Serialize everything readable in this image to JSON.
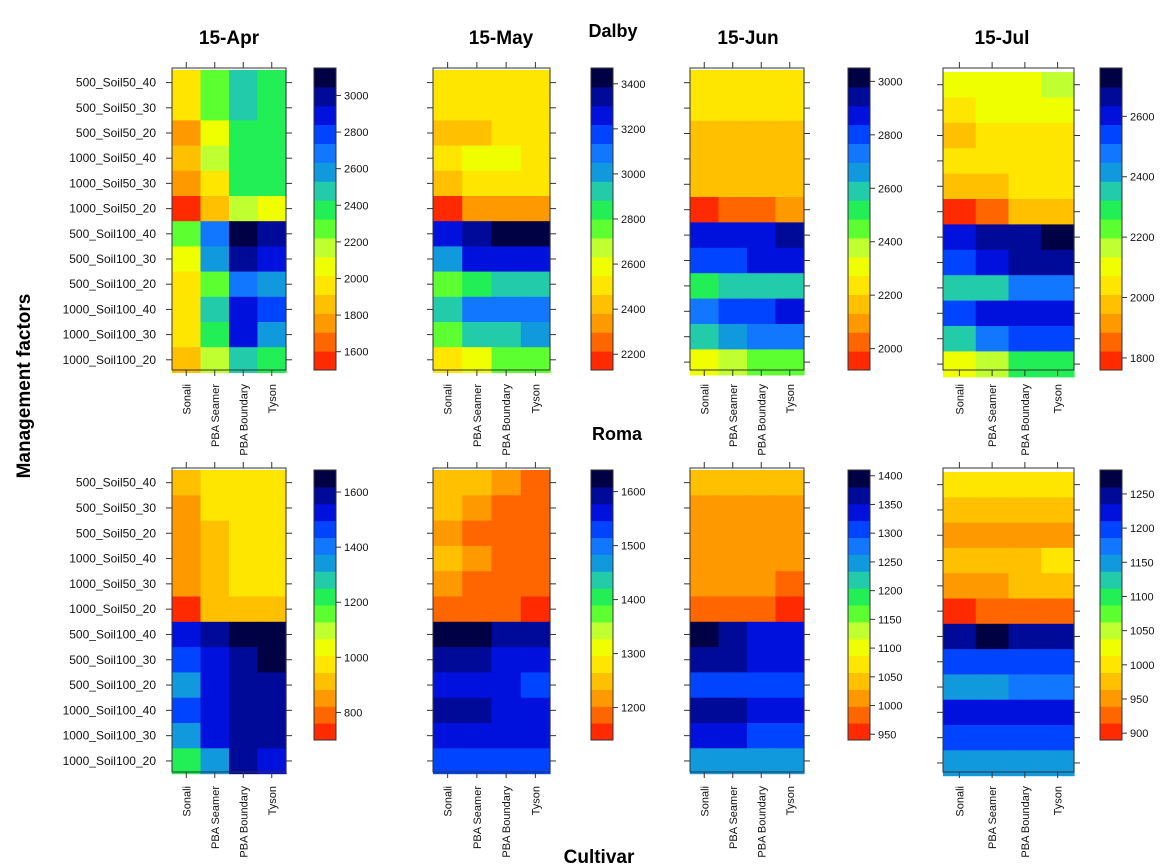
{
  "axes": {
    "ylabel": "Management factors",
    "xlabel": "Cultivar"
  },
  "colors": {
    "scale": [
      "#ff2a00",
      "#ff6600",
      "#ff9900",
      "#ffc000",
      "#ffe600",
      "#f0ff00",
      "#c0ff30",
      "#5cff30",
      "#22ee55",
      "#22ccaa",
      "#1199dd",
      "#1177ff",
      "#0044ff",
      "#0010dd",
      "#000a99",
      "#000044"
    ]
  },
  "chart_data": {
    "type": "heatmap",
    "rows": [
      "500_Soil50_40",
      "500_Soil50_30",
      "500_Soil50_20",
      "1000_Soil50_40",
      "1000_Soil50_30",
      "1000_Soil50_20",
      "500_Soil100_40",
      "500_Soil100_30",
      "500_Soil100_20",
      "1000_Soil100_40",
      "1000_Soil100_30",
      "1000_Soil100_20"
    ],
    "columns": [
      "Sonali",
      "PBA Seamer",
      "PBA Boundary",
      "Tyson"
    ],
    "sites": [
      {
        "name": "Dalby",
        "panels": [
          {
            "month": "15-Apr",
            "min": 1500,
            "max": 3150,
            "ticks": [
              1600,
              1800,
              2000,
              2200,
              2400,
              2600,
              2800,
              3000
            ],
            "values": [
              [
                1950,
                2300,
                2500,
                2350
              ],
              [
                1950,
                2300,
                2500,
                2350
              ],
              [
                1800,
                2050,
                2400,
                2350
              ],
              [
                1900,
                2150,
                2400,
                2350
              ],
              [
                1800,
                2000,
                2400,
                2350
              ],
              [
                1550,
                1900,
                2200,
                2050
              ],
              [
                2300,
                2700,
                3100,
                2950
              ],
              [
                2100,
                2550,
                2950,
                2850
              ],
              [
                1950,
                2300,
                2650,
                2550
              ],
              [
                1950,
                2450,
                2900,
                2750
              ],
              [
                2000,
                2350,
                2850,
                2600
              ],
              [
                1850,
                2150,
                2500,
                2400
              ]
            ]
          },
          {
            "month": "15-May",
            "min": 2130,
            "max": 3470,
            "ticks": [
              2200,
              2400,
              2600,
              2800,
              3000,
              3200,
              3400
            ],
            "values": [
              [
                2500,
                2500,
                2500,
                2500
              ],
              [
                2500,
                2500,
                2500,
                2500
              ],
              [
                2450,
                2450,
                2500,
                2500
              ],
              [
                2500,
                2550,
                2550,
                2500
              ],
              [
                2450,
                2500,
                2500,
                2500
              ],
              [
                2180,
                2300,
                2380,
                2380
              ],
              [
                3230,
                3330,
                3430,
                3430
              ],
              [
                3030,
                3230,
                3230,
                3230
              ],
              [
                2780,
                2880,
                2930,
                2930
              ],
              [
                2930,
                3130,
                3130,
                3130
              ],
              [
                2780,
                2930,
                2930,
                3030
              ],
              [
                2530,
                2630,
                2780,
                2780
              ]
            ]
          },
          {
            "month": "15-Jun",
            "min": 1920,
            "max": 3050,
            "ticks": [
              2000,
              2200,
              2400,
              2600,
              2800,
              3000
            ],
            "values": [
              [
                2250,
                2250,
                2250,
                2250
              ],
              [
                2250,
                2270,
                2270,
                2270
              ],
              [
                2180,
                2180,
                2180,
                2180
              ],
              [
                2200,
                2200,
                2200,
                2200
              ],
              [
                2150,
                2180,
                2180,
                2180
              ],
              [
                1960,
                2050,
                2050,
                2120
              ],
              [
                2880,
                2880,
                2880,
                2960
              ],
              [
                2770,
                2770,
                2840,
                2840
              ],
              [
                2500,
                2560,
                2620,
                2620
              ],
              [
                2700,
                2770,
                2770,
                2880
              ],
              [
                2560,
                2660,
                2700,
                2700
              ],
              [
                2300,
                2400,
                2480,
                2480
              ]
            ]
          },
          {
            "month": "15-Jul",
            "min": 1760,
            "max": 2760,
            "ticks": [
              1800,
              2000,
              2200,
              2400,
              2600
            ],
            "values": [
              [
                2080,
                2080,
                2080,
                2180
              ],
              [
                2050,
                2080,
                2080,
                2080
              ],
              [
                1950,
                2020,
                2020,
                2020
              ],
              [
                2020,
                2020,
                2050,
                2050
              ],
              [
                2000,
                2000,
                2020,
                2020
              ],
              [
                1790,
                1880,
                1950,
                1950
              ],
              [
                2620,
                2670,
                2670,
                2730
              ],
              [
                2550,
                2620,
                2670,
                2670
              ],
              [
                2330,
                2380,
                2450,
                2450
              ],
              [
                2520,
                2580,
                2620,
                2620
              ],
              [
                2380,
                2450,
                2520,
                2520
              ],
              [
                2120,
                2180,
                2300,
                2300
              ]
            ]
          }
        ]
      },
      {
        "name": "Roma",
        "panels": [
          {
            "month": "15-Apr",
            "min": 700,
            "max": 1680,
            "ticks": [
              800,
              1000,
              1200,
              1400,
              1600
            ],
            "values": [
              [
                920,
                980,
                980,
                980
              ],
              [
                870,
                980,
                980,
                980
              ],
              [
                870,
                920,
                980,
                980
              ],
              [
                870,
                920,
                980,
                980
              ],
              [
                870,
                920,
                950,
                950
              ],
              [
                760,
                920,
                920,
                920
              ],
              [
                1510,
                1580,
                1660,
                1630
              ],
              [
                1450,
                1540,
                1610,
                1630
              ],
              [
                1370,
                1540,
                1610,
                1570
              ],
              [
                1450,
                1540,
                1610,
                1610
              ],
              [
                1370,
                1540,
                1610,
                1590
              ],
              [
                1220,
                1370,
                1580,
                1510
              ]
            ]
          },
          {
            "month": "15-May",
            "min": 1140,
            "max": 1640,
            "ticks": [
              1200,
              1300,
              1400,
              1500,
              1600
            ],
            "values": [
              [
                1260,
                1240,
                1220,
                1200
              ],
              [
                1250,
                1230,
                1200,
                1200
              ],
              [
                1230,
                1200,
                1200,
                1200
              ],
              [
                1240,
                1220,
                1200,
                1200
              ],
              [
                1230,
                1200,
                1200,
                1200
              ],
              [
                1190,
                1190,
                1190,
                1160
              ],
              [
                1630,
                1610,
                1580,
                1580
              ],
              [
                1600,
                1600,
                1570,
                1570
              ],
              [
                1570,
                1570,
                1570,
                1530
              ],
              [
                1600,
                1600,
                1570,
                1570
              ],
              [
                1570,
                1570,
                1570,
                1570
              ],
              [
                1530,
                1530,
                1530,
                1530
              ]
            ]
          },
          {
            "month": "15-Jun",
            "min": 940,
            "max": 1410,
            "ticks": [
              950,
              1000,
              1050,
              1100,
              1150,
              1200,
              1250,
              1300,
              1350,
              1400
            ],
            "values": [
              [
                1050,
                1030,
                1030,
                1030
              ],
              [
                1020,
                1020,
                1020,
                1020
              ],
              [
                1000,
                1000,
                1000,
                1000
              ],
              [
                1020,
                1020,
                1020,
                1020
              ],
              [
                1020,
                1020,
                1020,
                990
              ],
              [
                990,
                990,
                990,
                960
              ],
              [
                1400,
                1370,
                1350,
                1350
              ],
              [
                1370,
                1370,
                1350,
                1350
              ],
              [
                1300,
                1300,
                1300,
                1300
              ],
              [
                1370,
                1370,
                1350,
                1350
              ],
              [
                1330,
                1330,
                1300,
                1300
              ],
              [
                1260,
                1260,
                1260,
                1260
              ]
            ]
          },
          {
            "month": "15-Jul",
            "min": 890,
            "max": 1285,
            "ticks": [
              900,
              950,
              1000,
              1050,
              1100,
              1150,
              1200,
              1250
            ],
            "values": [
              [
                1000,
                1000,
                1000,
                1000
              ],
              [
                980,
                980,
                980,
                980
              ],
              [
                960,
                960,
                960,
                960
              ],
              [
                980,
                980,
                980,
                1000
              ],
              [
                950,
                950,
                980,
                980
              ],
              [
                910,
                930,
                930,
                930
              ],
              [
                1250,
                1270,
                1250,
                1250
              ],
              [
                1210,
                1210,
                1210,
                1210
              ],
              [
                1150,
                1150,
                1180,
                1180
              ],
              [
                1230,
                1230,
                1230,
                1230
              ],
              [
                1190,
                1190,
                1190,
                1190
              ],
              [
                1140,
                1140,
                1140,
                1140
              ]
            ]
          }
        ]
      }
    ]
  }
}
